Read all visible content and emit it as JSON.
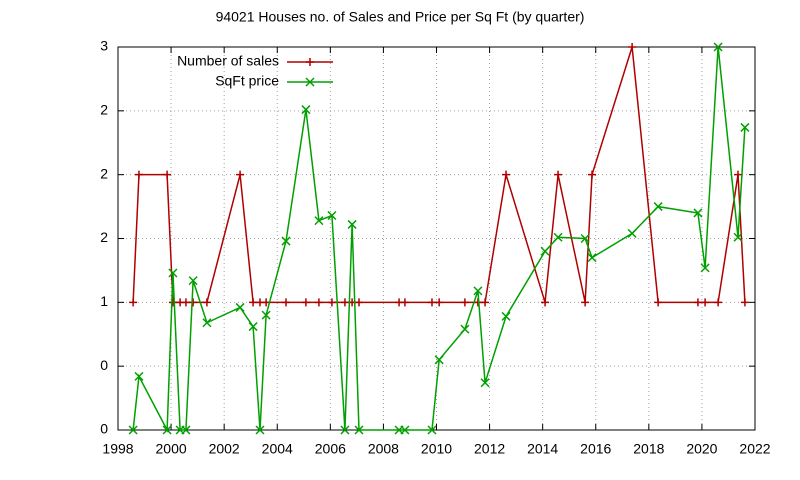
{
  "chart_data": {
    "type": "line",
    "title": "94021 Houses no. of Sales and Price per Sq Ft (by quarter)",
    "x": [
      1998.57,
      1998.79,
      1999.85,
      2000.07,
      2000.34,
      2000.56,
      2000.83,
      2001.35,
      2002.6,
      2003.09,
      2003.35,
      2003.58,
      2004.33,
      2005.08,
      2005.57,
      2006.06,
      2006.55,
      2006.82,
      2007.08,
      2008.59,
      2008.81,
      2009.83,
      2010.1,
      2011.07,
      2011.56,
      2011.83,
      2012.62,
      2014.09,
      2014.58,
      2015.6,
      2015.86,
      2017.37,
      2018.35,
      2019.85,
      2020.12,
      2020.61,
      2021.36,
      2021.62
    ],
    "series": [
      {
        "name": "Number of sales",
        "color": "#b00000",
        "marker": "plus",
        "values": [
          1,
          2,
          2,
          1,
          1,
          1,
          1,
          1,
          2,
          1,
          1,
          1,
          1,
          1,
          1,
          1,
          1,
          1,
          1,
          1,
          1,
          1,
          1,
          1,
          1,
          1,
          2,
          1,
          2,
          1,
          2,
          3,
          1,
          1,
          1,
          1,
          2,
          1
        ]
      },
      {
        "name": "SqFt price",
        "color": "#00a000",
        "marker": "cross",
        "values": [
          0,
          0.42,
          0,
          1.23,
          0,
          0,
          1.17,
          0.84,
          0.96,
          0.81,
          0,
          0.9,
          1.48,
          2.51,
          1.64,
          1.68,
          0,
          1.61,
          0,
          0,
          0,
          0,
          0.55,
          0.79,
          1.09,
          0.37,
          0.89,
          1.4,
          1.51,
          1.5,
          1.35,
          1.54,
          1.75,
          1.7,
          1.27,
          3,
          1.51,
          2.37
        ]
      }
    ],
    "xlim": [
      1998,
      2022
    ],
    "xticks": [
      1998,
      2000,
      2002,
      2004,
      2006,
      2008,
      2010,
      2012,
      2014,
      2016,
      2018,
      2020,
      2022
    ],
    "ylim": [
      0,
      3
    ],
    "yticks": [
      0,
      {
        "value": 0.5,
        "label": "0"
      },
      1,
      {
        "value": 1.5,
        "label": "2"
      },
      2,
      {
        "value": 2.5,
        "label": "2"
      },
      3
    ],
    "grid": true,
    "legend": "top-left"
  }
}
